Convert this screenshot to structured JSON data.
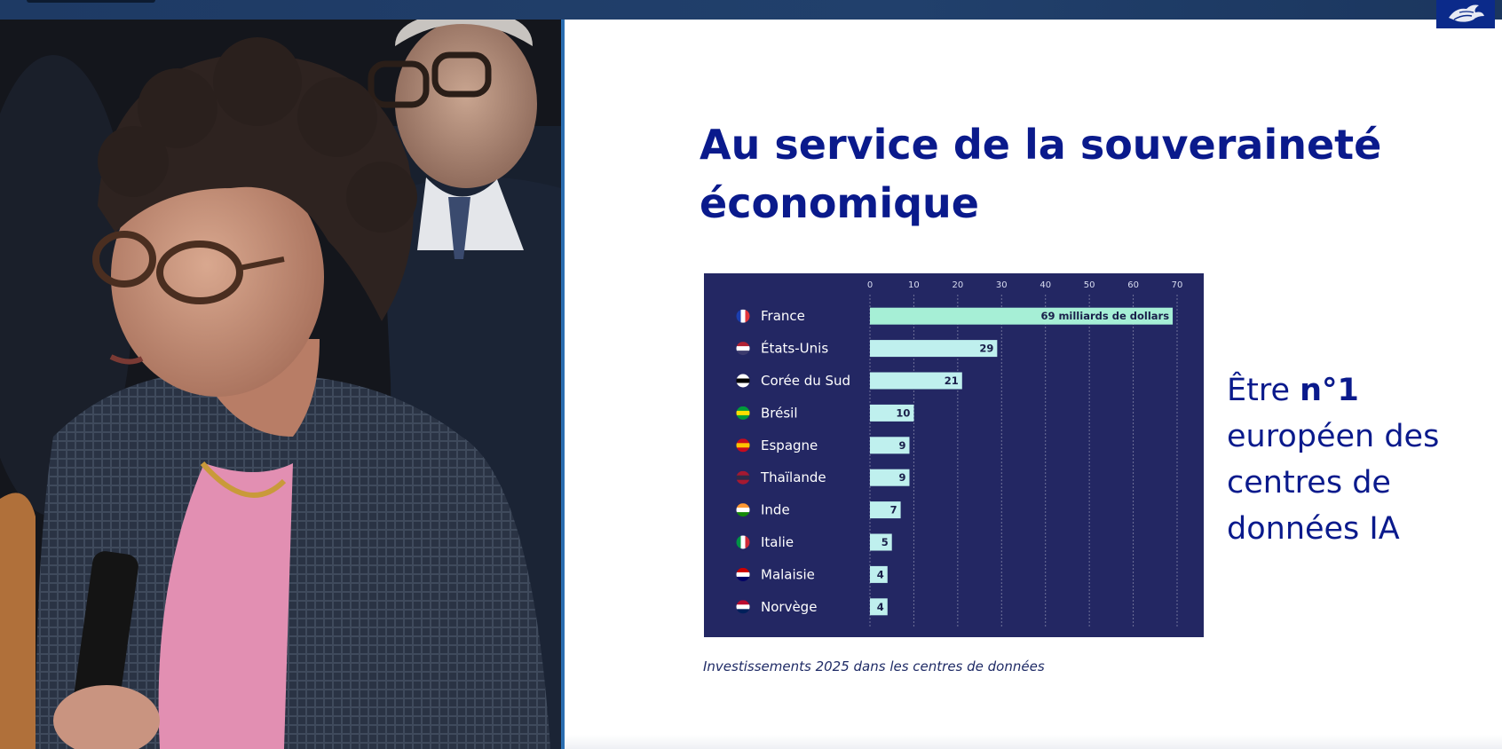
{
  "slide": {
    "title": "Au service de la souveraineté économique",
    "side_text": {
      "prefix": "Être ",
      "bold": "n°1",
      "rest": "européen des centres de données IA"
    },
    "caption": "Investissements 2025 dans les centres de données"
  },
  "colors": {
    "title": "#0a1a8c",
    "chart_background": "#232763",
    "bar": "#bff0ee",
    "bar_highlight": "#a6efd6"
  },
  "chart_data": {
    "type": "bar",
    "orientation": "horizontal",
    "categories": [
      "France",
      "États-Unis",
      "Corée du Sud",
      "Brésil",
      "Espagne",
      "Thaïlande",
      "Inde",
      "Italie",
      "Malaisie",
      "Norvège"
    ],
    "flags": [
      "fr",
      "us",
      "kr",
      "br",
      "es",
      "th",
      "in",
      "it",
      "my",
      "no"
    ],
    "values": [
      69,
      29,
      21,
      10,
      9,
      9,
      7,
      5,
      4,
      4
    ],
    "data_labels": [
      "69 milliards de dollars",
      "29",
      "21",
      "10",
      "9",
      "9",
      "7",
      "5",
      "4",
      "4"
    ],
    "xticks": [
      0,
      10,
      20,
      30,
      40,
      50,
      60,
      70
    ],
    "xlim": [
      0,
      70
    ],
    "grid": true,
    "xaxis_position": "top"
  }
}
